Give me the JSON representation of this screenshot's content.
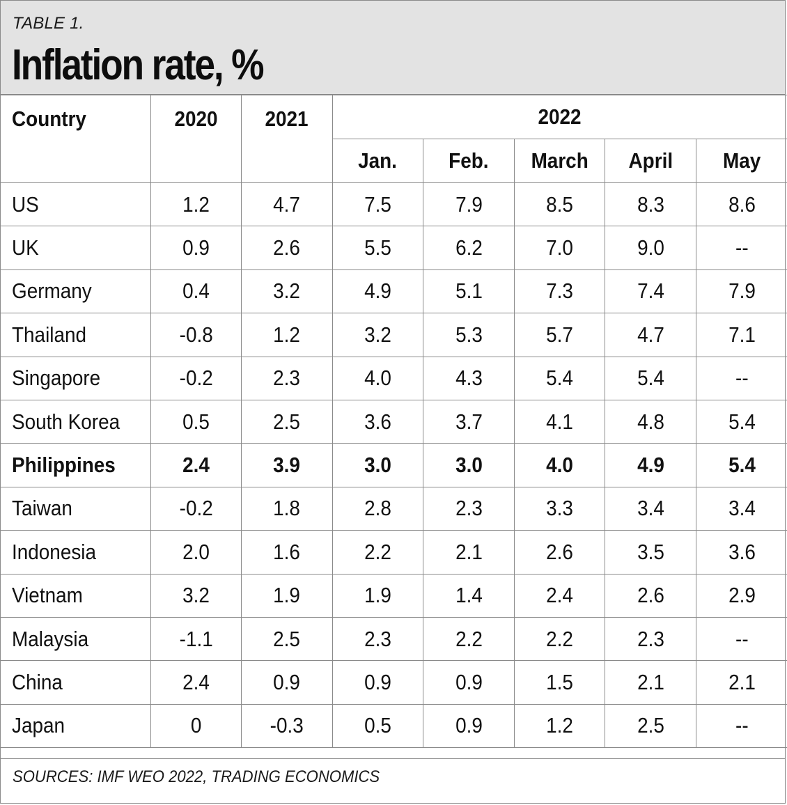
{
  "header": {
    "table_label": "TABLE 1.",
    "title": "Inflation rate, %"
  },
  "table": {
    "columns": {
      "country": "Country",
      "y2020": "2020",
      "y2021": "2021",
      "y2022": "2022",
      "months": [
        "Jan.",
        "Feb.",
        "March",
        "April",
        "May"
      ]
    },
    "rows": [
      {
        "country": "US",
        "values": [
          "1.2",
          "4.7",
          "7.5",
          "7.9",
          "8.5",
          "8.3",
          "8.6"
        ]
      },
      {
        "country": "UK",
        "values": [
          "0.9",
          "2.6",
          "5.5",
          "6.2",
          "7.0",
          "9.0",
          "--"
        ]
      },
      {
        "country": "Germany",
        "values": [
          "0.4",
          "3.2",
          "4.9",
          "5.1",
          "7.3",
          "7.4",
          "7.9"
        ]
      },
      {
        "country": "Thailand",
        "values": [
          "-0.8",
          "1.2",
          "3.2",
          "5.3",
          "5.7",
          "4.7",
          "7.1"
        ]
      },
      {
        "country": "Singapore",
        "values": [
          "-0.2",
          "2.3",
          "4.0",
          "4.3",
          "5.4",
          "5.4",
          "--"
        ]
      },
      {
        "country": "South Korea",
        "values": [
          "0.5",
          "2.5",
          "3.6",
          "3.7",
          "4.1",
          "4.8",
          "5.4"
        ]
      },
      {
        "country": "Philippines",
        "values": [
          "2.4",
          "3.9",
          "3.0",
          "3.0",
          "4.0",
          "4.9",
          "5.4"
        ],
        "highlight": true
      },
      {
        "country": "Taiwan",
        "values": [
          "-0.2",
          "1.8",
          "2.8",
          "2.3",
          "3.3",
          "3.4",
          "3.4"
        ]
      },
      {
        "country": "Indonesia",
        "values": [
          "2.0",
          "1.6",
          "2.2",
          "2.1",
          "2.6",
          "3.5",
          "3.6"
        ]
      },
      {
        "country": "Vietnam",
        "values": [
          "3.2",
          "1.9",
          "1.9",
          "1.4",
          "2.4",
          "2.6",
          "2.9"
        ]
      },
      {
        "country": "Malaysia",
        "values": [
          "-1.1",
          "2.5",
          "2.3",
          "2.2",
          "2.2",
          "2.3",
          "--"
        ]
      },
      {
        "country": "China",
        "values": [
          "2.4",
          "0.9",
          "0.9",
          "0.9",
          "1.5",
          "2.1",
          "2.1"
        ]
      },
      {
        "country": "Japan",
        "values": [
          "0",
          "-0.3",
          "0.5",
          "0.9",
          "1.2",
          "2.5",
          "--"
        ]
      }
    ]
  },
  "footer": {
    "sources": "SOURCES: IMF WEO 2022, TRADING ECONOMICS"
  }
}
